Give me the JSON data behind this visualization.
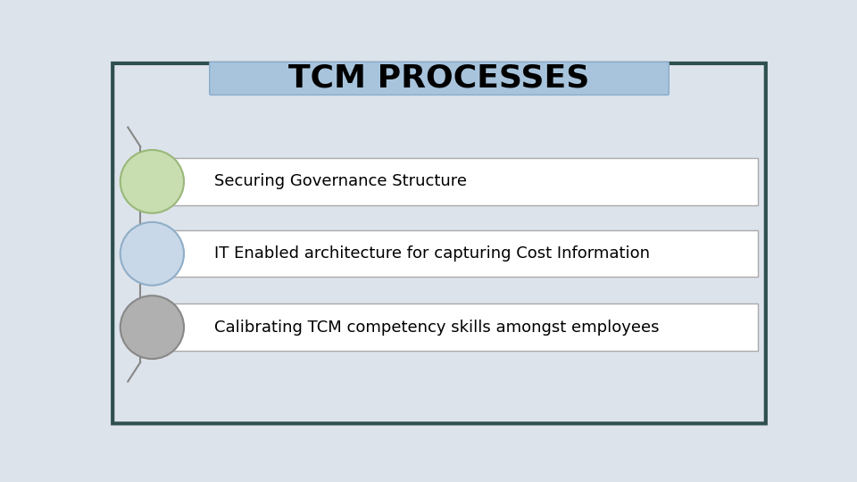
{
  "title": "TCM PROCESSES",
  "title_bg_color": "#a8c4dc",
  "title_font_size": 26,
  "bg_color": "#dce3eb",
  "outer_border_color": "#2f4f4f",
  "rows": [
    {
      "text": "Securing Governance Structure",
      "circle_color": "#c8ddb0",
      "circle_edge_color": "#9ab87a"
    },
    {
      "text": "IT Enabled architecture for capturing Cost Information",
      "circle_color": "#c8d8e8",
      "circle_edge_color": "#90aec8"
    },
    {
      "text": "Calibrating TCM competency skills amongst employees",
      "circle_color": "#b0b0b0",
      "circle_edge_color": "#888888"
    }
  ],
  "row_box_color": "#ffffff",
  "row_box_edge_color": "#aaaaaa",
  "connector_color": "#888888",
  "text_font_size": 13
}
